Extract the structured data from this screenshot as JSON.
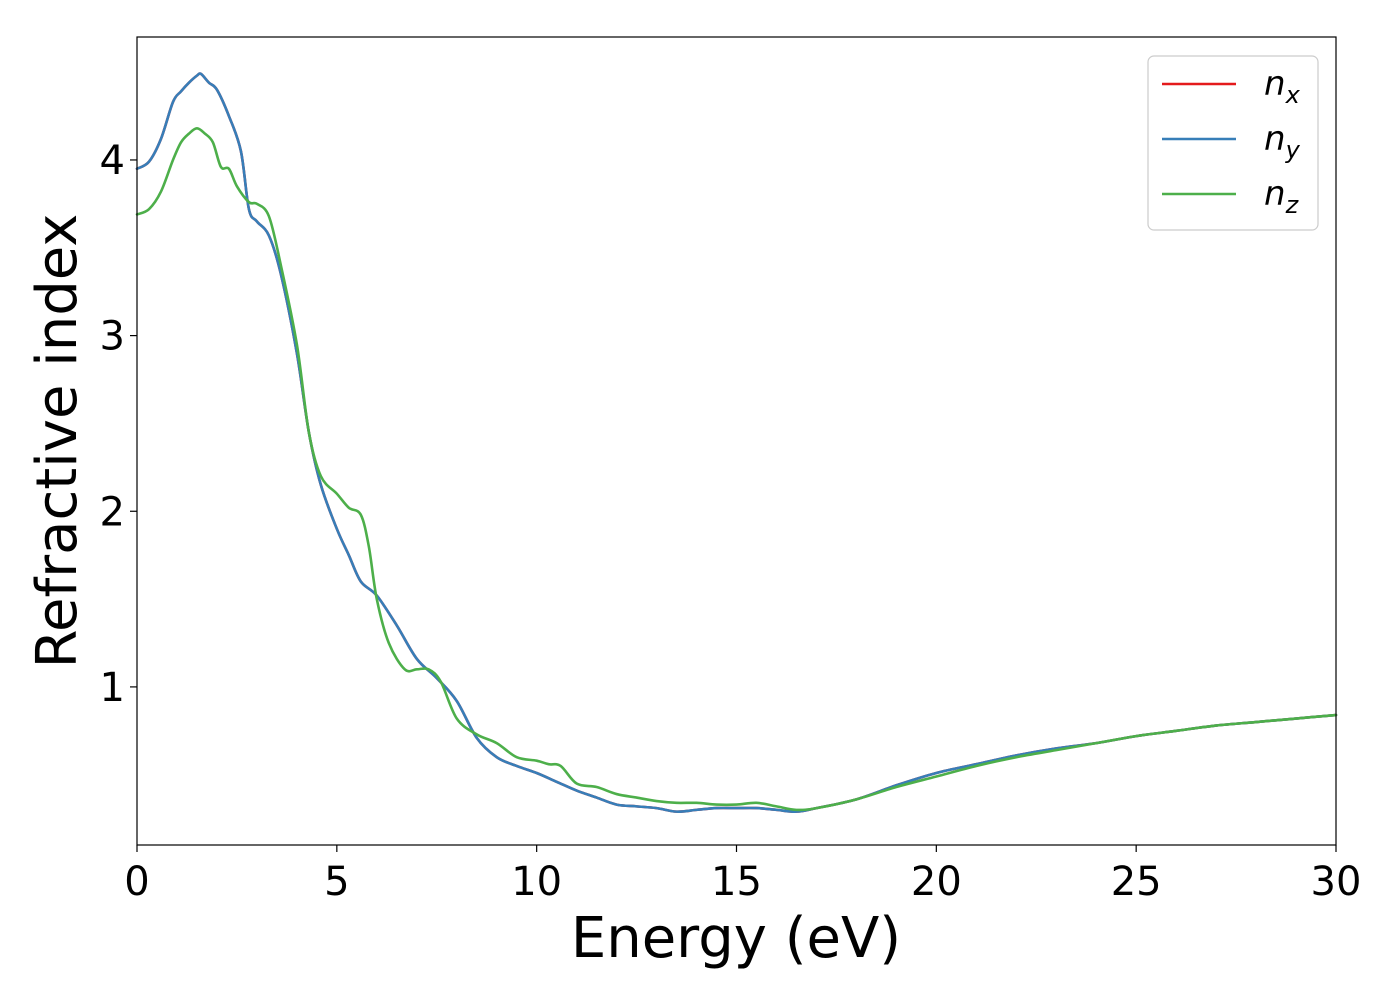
{
  "chart_data": {
    "type": "line",
    "xlabel": "Energy (eV)",
    "ylabel": "Refractive index",
    "xlim": [
      0,
      30
    ],
    "ylim": [
      0.1,
      4.7
    ],
    "xticks": [
      0,
      5,
      10,
      15,
      20,
      25,
      30
    ],
    "yticks": [
      1,
      2,
      3,
      4
    ],
    "grid": false,
    "legend_position": "top-right",
    "series": [
      {
        "name": "n_x",
        "legend_base": "n",
        "legend_sub": "x",
        "color": "#e41a1c",
        "x": [
          0,
          0.3,
          0.6,
          0.9,
          1.1,
          1.3,
          1.5,
          1.6,
          1.8,
          2.0,
          2.3,
          2.6,
          2.8,
          3.0,
          3.3,
          3.6,
          4.0,
          4.3,
          4.6,
          5.0,
          5.3,
          5.6,
          6.0,
          6.5,
          7.0,
          7.5,
          8.0,
          8.5,
          9.0,
          9.5,
          10.0,
          10.5,
          11.0,
          11.5,
          12.0,
          12.5,
          13.0,
          13.5,
          14.0,
          14.5,
          15.0,
          15.5,
          16.0,
          16.5,
          17.0,
          18.0,
          19.0,
          20.0,
          21.0,
          22.0,
          23.0,
          24.0,
          25.0,
          26.0,
          27.0,
          28.0,
          29.0,
          30.0
        ],
        "values": [
          3.95,
          3.99,
          4.12,
          4.33,
          4.39,
          4.44,
          4.48,
          4.49,
          4.44,
          4.4,
          4.25,
          4.05,
          3.72,
          3.65,
          3.57,
          3.35,
          2.9,
          2.45,
          2.15,
          1.9,
          1.75,
          1.6,
          1.52,
          1.35,
          1.16,
          1.05,
          0.92,
          0.71,
          0.6,
          0.55,
          0.51,
          0.46,
          0.41,
          0.37,
          0.33,
          0.32,
          0.31,
          0.29,
          0.3,
          0.31,
          0.31,
          0.31,
          0.3,
          0.29,
          0.31,
          0.36,
          0.44,
          0.51,
          0.56,
          0.61,
          0.65,
          0.68,
          0.72,
          0.75,
          0.78,
          0.8,
          0.82,
          0.84
        ]
      },
      {
        "name": "n_y",
        "legend_base": "n",
        "legend_sub": "y",
        "color": "#377eb8",
        "x": [
          0,
          0.3,
          0.6,
          0.9,
          1.1,
          1.3,
          1.5,
          1.6,
          1.8,
          2.0,
          2.3,
          2.6,
          2.8,
          3.0,
          3.3,
          3.6,
          4.0,
          4.3,
          4.6,
          5.0,
          5.3,
          5.6,
          6.0,
          6.5,
          7.0,
          7.5,
          8.0,
          8.5,
          9.0,
          9.5,
          10.0,
          10.5,
          11.0,
          11.5,
          12.0,
          12.5,
          13.0,
          13.5,
          14.0,
          14.5,
          15.0,
          15.5,
          16.0,
          16.5,
          17.0,
          18.0,
          19.0,
          20.0,
          21.0,
          22.0,
          23.0,
          24.0,
          25.0,
          26.0,
          27.0,
          28.0,
          29.0,
          30.0
        ],
        "values": [
          3.95,
          3.99,
          4.12,
          4.33,
          4.39,
          4.44,
          4.48,
          4.49,
          4.44,
          4.4,
          4.25,
          4.05,
          3.72,
          3.65,
          3.57,
          3.35,
          2.9,
          2.45,
          2.15,
          1.9,
          1.75,
          1.6,
          1.52,
          1.35,
          1.16,
          1.05,
          0.92,
          0.71,
          0.6,
          0.55,
          0.51,
          0.46,
          0.41,
          0.37,
          0.33,
          0.32,
          0.31,
          0.29,
          0.3,
          0.31,
          0.31,
          0.31,
          0.3,
          0.29,
          0.31,
          0.36,
          0.44,
          0.51,
          0.56,
          0.61,
          0.65,
          0.68,
          0.72,
          0.75,
          0.78,
          0.8,
          0.82,
          0.84
        ]
      },
      {
        "name": "n_z",
        "legend_base": "n",
        "legend_sub": "z",
        "color": "#4daf4a",
        "x": [
          0,
          0.3,
          0.6,
          0.9,
          1.1,
          1.3,
          1.5,
          1.7,
          1.9,
          2.1,
          2.3,
          2.5,
          2.8,
          3.0,
          3.3,
          3.6,
          4.0,
          4.3,
          4.6,
          5.0,
          5.3,
          5.6,
          5.8,
          6.0,
          6.3,
          6.7,
          7.0,
          7.3,
          7.6,
          8.0,
          8.5,
          9.0,
          9.5,
          10.0,
          10.3,
          10.6,
          11.0,
          11.5,
          12.0,
          12.5,
          13.0,
          13.5,
          14.0,
          14.5,
          15.0,
          15.5,
          16.0,
          16.5,
          17.0,
          18.0,
          19.0,
          20.0,
          21.0,
          22.0,
          23.0,
          24.0,
          25.0,
          26.0,
          27.0,
          28.0,
          29.0,
          30.0
        ],
        "values": [
          3.69,
          3.72,
          3.82,
          4.0,
          4.1,
          4.15,
          4.18,
          4.15,
          4.1,
          3.96,
          3.95,
          3.85,
          3.76,
          3.75,
          3.68,
          3.4,
          2.95,
          2.45,
          2.2,
          2.1,
          2.02,
          1.98,
          1.8,
          1.5,
          1.25,
          1.1,
          1.1,
          1.1,
          1.03,
          0.82,
          0.73,
          0.68,
          0.6,
          0.58,
          0.56,
          0.55,
          0.45,
          0.43,
          0.39,
          0.37,
          0.35,
          0.34,
          0.34,
          0.33,
          0.33,
          0.34,
          0.32,
          0.3,
          0.31,
          0.36,
          0.43,
          0.49,
          0.55,
          0.6,
          0.64,
          0.68,
          0.72,
          0.75,
          0.78,
          0.8,
          0.82,
          0.84
        ]
      }
    ]
  }
}
